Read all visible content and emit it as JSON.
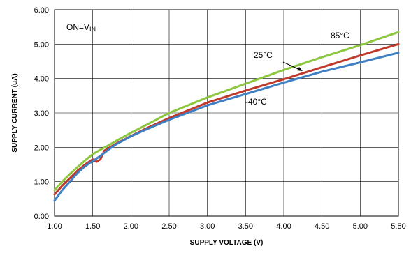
{
  "chart_data": {
    "type": "line",
    "title": "",
    "xlabel": "SUPPLY VOLTAGE (V)",
    "ylabel": "SUPPLY CURRENT (uA)",
    "xlim": [
      1.0,
      5.5
    ],
    "ylim": [
      0.0,
      6.0
    ],
    "x_ticks": [
      "1.00",
      "1.50",
      "2.00",
      "2.50",
      "3.00",
      "3.50",
      "4.00",
      "4.50",
      "5.00",
      "5.50"
    ],
    "y_ticks": [
      "0.00",
      "1.00",
      "2.00",
      "3.00",
      "4.00",
      "5.00",
      "6.00"
    ],
    "grid": true,
    "condition_label": "ON=V",
    "condition_subscript": "IN",
    "series": [
      {
        "name": "85°C",
        "color": "#8dc63f",
        "x": [
          1.0,
          1.1,
          1.2,
          1.3,
          1.4,
          1.5,
          1.6,
          1.7,
          1.8,
          2.0,
          2.2,
          2.5,
          3.0,
          3.5,
          4.0,
          4.5,
          5.0,
          5.5
        ],
        "y": [
          0.75,
          1.0,
          1.22,
          1.42,
          1.62,
          1.8,
          1.93,
          2.05,
          2.18,
          2.42,
          2.65,
          3.0,
          3.45,
          3.85,
          4.25,
          4.62,
          4.97,
          5.35
        ]
      },
      {
        "name": "25°C",
        "color": "#c0392b",
        "x": [
          1.0,
          1.1,
          1.2,
          1.3,
          1.4,
          1.5,
          1.55,
          1.6,
          1.65,
          1.8,
          2.0,
          2.2,
          2.5,
          3.0,
          3.5,
          4.0,
          4.5,
          5.0,
          5.5
        ],
        "y": [
          0.63,
          0.88,
          1.1,
          1.32,
          1.5,
          1.65,
          1.58,
          1.65,
          1.9,
          2.1,
          2.33,
          2.55,
          2.85,
          3.3,
          3.65,
          3.98,
          4.33,
          4.67,
          5.0
        ]
      },
      {
        "name": "-40°C",
        "color": "#3f7fc4",
        "x": [
          1.0,
          1.1,
          1.2,
          1.3,
          1.4,
          1.5,
          1.6,
          1.7,
          1.8,
          2.0,
          2.2,
          2.5,
          3.0,
          3.5,
          4.0,
          4.5,
          5.0,
          5.5
        ],
        "y": [
          0.45,
          0.75,
          1.0,
          1.25,
          1.45,
          1.6,
          1.75,
          1.92,
          2.08,
          2.32,
          2.52,
          2.8,
          3.22,
          3.55,
          3.88,
          4.2,
          4.47,
          4.75
        ]
      }
    ]
  }
}
